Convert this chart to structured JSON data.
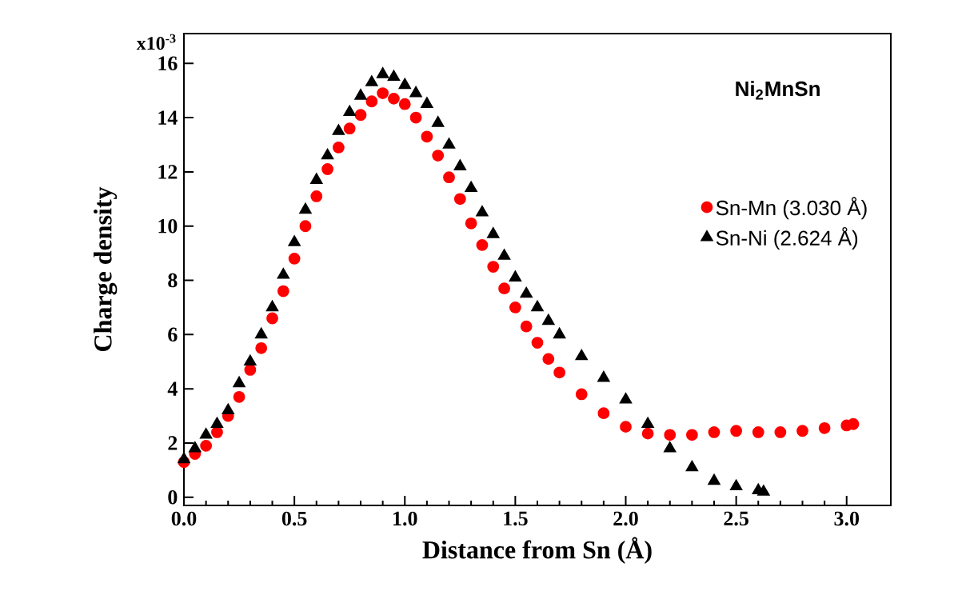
{
  "chart_data": {
    "type": "scatter",
    "xlabel": "Distance from Sn (Å)",
    "ylabel": "Charge density",
    "annotations": [
      "Ni$_{2}$MnSn",
      "x10$^{-3}$"
    ],
    "xlim": [
      0,
      3.2
    ],
    "xticks": [
      {
        "value": 0,
        "label": "0.0"
      },
      0.5,
      {
        "value": 1,
        "label": "1.0"
      },
      1.5,
      {
        "value": 2,
        "label": "2.0"
      },
      2.5,
      {
        "value": 3,
        "label": "3.0"
      }
    ],
    "ylim": [
      -0.3,
      17.1
    ],
    "yticks": [
      0,
      2,
      4,
      6,
      8,
      10,
      12,
      14,
      16
    ],
    "legend": "right",
    "grid": false,
    "series": [
      {
        "name": "Sn-Mn (3.030 Å)",
        "color": "#ff0000",
        "marker": "circle",
        "x": [
          0,
          0.05,
          0.1,
          0.15,
          0.2,
          0.25,
          0.3,
          0.35,
          0.4,
          0.45,
          0.5,
          0.55,
          0.6,
          0.65,
          0.7,
          0.75,
          0.8,
          0.85,
          0.9,
          0.95,
          1.0,
          1.05,
          1.1,
          1.15,
          1.2,
          1.25,
          1.3,
          1.35,
          1.4,
          1.45,
          1.5,
          1.55,
          1.6,
          1.65,
          1.7,
          1.8,
          1.9,
          2.0,
          2.1,
          2.2,
          2.3,
          2.4,
          2.5,
          2.6,
          2.7,
          2.8,
          2.9,
          3.0,
          3.03
        ],
        "values": [
          1.3,
          1.6,
          1.9,
          2.4,
          3.0,
          3.7,
          4.7,
          5.5,
          6.6,
          7.6,
          8.8,
          10.0,
          11.1,
          12.1,
          12.9,
          13.6,
          14.1,
          14.6,
          14.9,
          14.7,
          14.5,
          14.0,
          13.3,
          12.6,
          11.8,
          11.0,
          10.1,
          9.3,
          8.5,
          7.7,
          7.0,
          6.3,
          5.7,
          5.1,
          4.6,
          3.8,
          3.1,
          2.6,
          2.35,
          2.3,
          2.3,
          2.4,
          2.45,
          2.4,
          2.4,
          2.45,
          2.55,
          2.65,
          2.7
        ]
      },
      {
        "name": "Sn-Ni   (2.624 Å)",
        "color": "#000000",
        "marker": "triangle",
        "x": [
          0,
          0.05,
          0.1,
          0.15,
          0.2,
          0.25,
          0.3,
          0.35,
          0.4,
          0.45,
          0.5,
          0.55,
          0.6,
          0.65,
          0.7,
          0.75,
          0.8,
          0.85,
          0.9,
          0.95,
          1.0,
          1.05,
          1.1,
          1.15,
          1.2,
          1.25,
          1.3,
          1.35,
          1.4,
          1.45,
          1.5,
          1.55,
          1.6,
          1.65,
          1.7,
          1.8,
          1.9,
          2.0,
          2.1,
          2.2,
          2.3,
          2.4,
          2.5,
          2.6,
          2.624
        ],
        "values": [
          1.4,
          1.8,
          2.3,
          2.7,
          3.2,
          4.2,
          5.0,
          6.0,
          7.0,
          8.2,
          9.4,
          10.6,
          11.7,
          12.6,
          13.5,
          14.2,
          14.8,
          15.3,
          15.6,
          15.5,
          15.2,
          14.9,
          14.5,
          13.8,
          13.0,
          12.2,
          11.4,
          10.5,
          9.7,
          8.9,
          8.1,
          7.5,
          7.0,
          6.5,
          6.0,
          5.2,
          4.4,
          3.6,
          2.7,
          1.8,
          1.1,
          0.6,
          0.4,
          0.25,
          0.2
        ]
      }
    ]
  }
}
